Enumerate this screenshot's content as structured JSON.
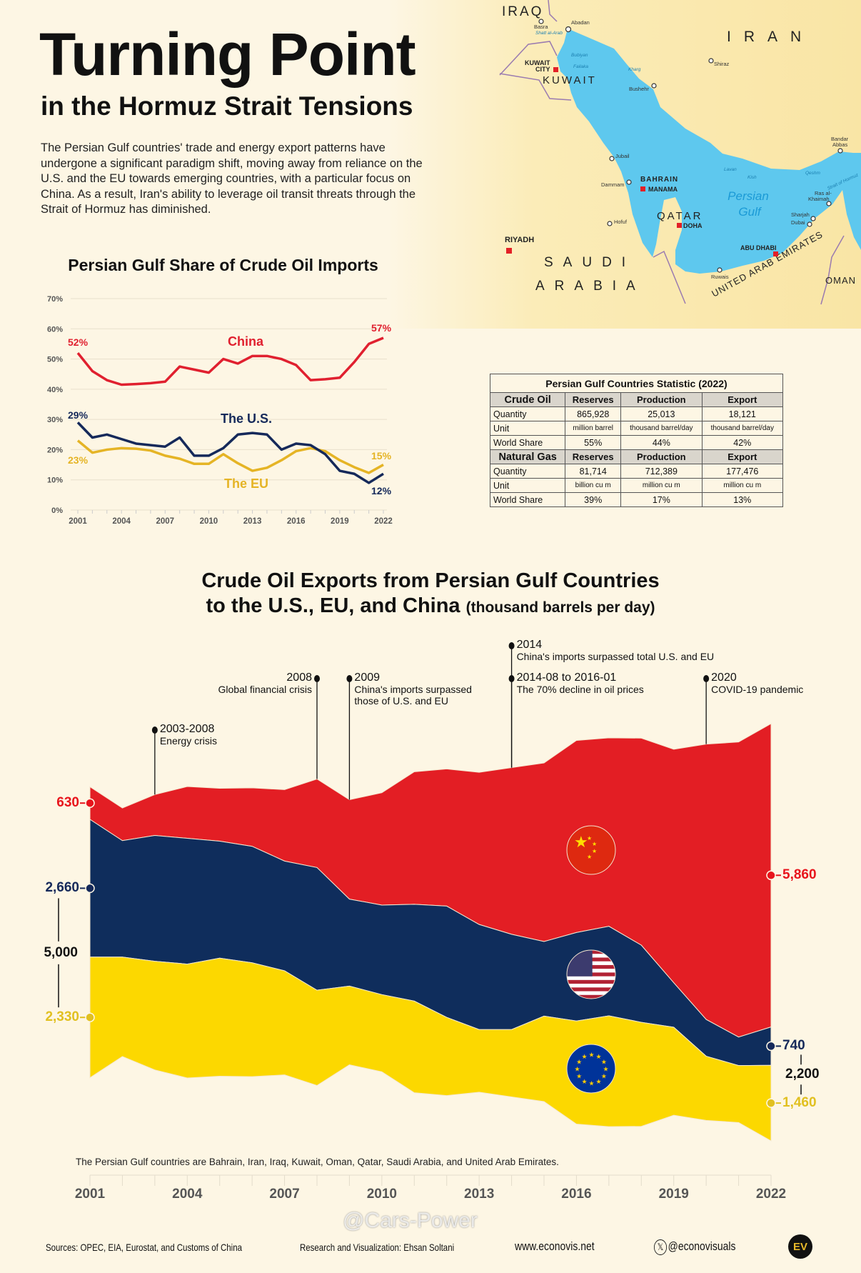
{
  "header": {
    "title": "Turning Point",
    "subtitle": "in the Hormuz Strait Tensions",
    "intro": "The Persian Gulf countries' trade and energy export patterns have undergone a significant paradigm shift, moving away from reliance on the U.S. and the EU towards emerging countries, with a particular focus on China. As a result, Iran's ability to leverage oil transit threats through the Strait of Hormuz has diminished."
  },
  "map": {
    "countries": [
      "IRAQ",
      "IRAN",
      "KUWAIT",
      "QATAR",
      "SAUDI",
      "ARABIA",
      "UNITED ARAB EMIRATES",
      "OMAN",
      "BAHRAIN"
    ],
    "capitals": [
      "KUWAIT",
      "CITY",
      "MANAMA",
      "DOHA",
      "RIYADH",
      "ABU DHABI"
    ],
    "cities": [
      "Basra",
      "Abadan",
      "Shiraz",
      "Bushehr",
      "Jubail",
      "Dammam",
      "Hofuf",
      "Bandar",
      "Abbas",
      "Ras al-",
      "Khaimah",
      "Sharjah",
      "Dubai",
      "Ruwais"
    ],
    "features": [
      "Shatt al-Arab",
      "Bubiyan",
      "Failaka",
      "Kharg",
      "Lavan",
      "Kish",
      "Qeshm",
      "Strait of Hormuz"
    ],
    "sea": [
      "Persian",
      "Gulf"
    ]
  },
  "colors": {
    "china": "#e31e24",
    "us": "#0f2d5c",
    "eu": "#fcd800",
    "china_line": "#e0202f",
    "us_line": "#15295a",
    "eu_line": "#e5b425"
  },
  "table": {
    "title": "Persian Gulf Countries Statistic (2022)",
    "sections": [
      {
        "name": "Crude Oil",
        "cols": [
          "Reserves",
          "Production",
          "Export"
        ],
        "rows": [
          [
            "Quantity",
            "865,928",
            "25,013",
            "18,121"
          ],
          [
            "Unit",
            "million barrel",
            "thousand barrel/day",
            "thousand barrel/day"
          ],
          [
            "World Share",
            "55%",
            "44%",
            "42%"
          ]
        ]
      },
      {
        "name": "Natural Gas",
        "cols": [
          "Reserves",
          "Production",
          "Export"
        ],
        "rows": [
          [
            "Quantity",
            "81,714",
            "712,389",
            "177,476"
          ],
          [
            "Unit",
            "billion cu m",
            "million cu m",
            "million cu m"
          ],
          [
            "World Share",
            "39%",
            "17%",
            "13%"
          ]
        ]
      }
    ]
  },
  "chart_data": [
    {
      "type": "line",
      "title": "Persian Gulf Share of Crude Oil Imports",
      "x": [
        2001,
        2002,
        2003,
        2004,
        2005,
        2006,
        2007,
        2008,
        2009,
        2010,
        2011,
        2012,
        2013,
        2014,
        2015,
        2016,
        2017,
        2018,
        2019,
        2020,
        2021,
        2022
      ],
      "xticks": [
        "2001",
        "2004",
        "2007",
        "2010",
        "2013",
        "2016",
        "2019",
        "2022"
      ],
      "yticks": [
        "0%",
        "10%",
        "20%",
        "30%",
        "40%",
        "50%",
        "60%",
        "70%"
      ],
      "ylim": [
        0,
        70
      ],
      "grid": true,
      "series": [
        {
          "name": "China",
          "key": "china",
          "values": [
            52,
            46,
            43,
            41.5,
            41.7,
            42,
            42.5,
            47.5,
            46.5,
            45.5,
            50,
            48.5,
            51,
            51,
            50,
            48,
            43,
            43.3,
            43.8,
            49,
            55,
            57
          ],
          "start_label": "52%",
          "end_label": "57%"
        },
        {
          "name": "The U.S.",
          "key": "us",
          "values": [
            29,
            24,
            25,
            23.5,
            22,
            21.5,
            21,
            24,
            18,
            18,
            20.5,
            25,
            25.5,
            25,
            20,
            22,
            21.5,
            18.5,
            13,
            12,
            9,
            12
          ],
          "start_label": "29%",
          "end_label": "12%"
        },
        {
          "name": "The EU",
          "key": "eu",
          "values": [
            23,
            19,
            20,
            20.5,
            20.3,
            19.7,
            18,
            17,
            15.3,
            15.3,
            18.5,
            15.5,
            13,
            14,
            16.5,
            19.5,
            20.5,
            19.5,
            16.5,
            14.2,
            12.3,
            15
          ],
          "start_label": "23%",
          "end_label": "15%"
        }
      ]
    },
    {
      "type": "area",
      "title_line1": "Crude Oil Exports from Persian Gulf Countries",
      "title_line2": "to the U.S., EU, and China",
      "unit": "(thousand barrels per day)",
      "x": [
        2001,
        2002,
        2003,
        2004,
        2005,
        2006,
        2007,
        2008,
        2009,
        2010,
        2011,
        2012,
        2013,
        2014,
        2015,
        2016,
        2017,
        2018,
        2019,
        2020,
        2021,
        2022
      ],
      "xticks": [
        "2001",
        "2004",
        "2007",
        "2010",
        "2013",
        "2016",
        "2019",
        "2022"
      ],
      "series": [
        {
          "name": "China",
          "key": "china",
          "values": [
            630,
            630,
            790,
            1000,
            1020,
            1130,
            1380,
            1710,
            1920,
            2170,
            2560,
            2650,
            2940,
            3220,
            3450,
            3710,
            3640,
            4000,
            4510,
            5320,
            5700,
            5860
          ]
        },
        {
          "name": "U.S.",
          "key": "us",
          "values": [
            2660,
            2250,
            2430,
            2430,
            2260,
            2250,
            2120,
            2370,
            1680,
            1730,
            1870,
            2150,
            2030,
            1840,
            1440,
            1710,
            1730,
            1490,
            860,
            710,
            550,
            740
          ]
        },
        {
          "name": "EU",
          "key": "eu",
          "values": [
            2330,
            1920,
            2100,
            2200,
            2280,
            2200,
            2010,
            1840,
            1520,
            1490,
            1770,
            1510,
            1210,
            1300,
            1650,
            1990,
            2140,
            2010,
            1700,
            1240,
            1100,
            1460
          ]
        }
      ],
      "start_labels": {
        "china": "630",
        "us": "2,660",
        "eu": "2,330",
        "us_eu_total": "5,000"
      },
      "end_labels": {
        "china": "5,860",
        "us": "740",
        "eu": "1,460",
        "us_eu_total": "2,200"
      },
      "annotations": [
        {
          "year": 2003,
          "label": "2003-2008",
          "text": "Energy crisis"
        },
        {
          "year": 2008,
          "label": "2008",
          "text": "Global financial crisis"
        },
        {
          "year": 2009,
          "label": "2009",
          "text": "China's imports surpassed those of U.S. and EU"
        },
        {
          "year": 2014,
          "label": "2014",
          "text": "China's imports surpassed total U.S. and EU"
        },
        {
          "year": 2014,
          "label": "2014-08 to 2016-01",
          "text": "The 70% decline in oil prices"
        },
        {
          "year": 2020,
          "label": "2020",
          "text": "COVID-19 pandemic"
        }
      ],
      "note": "The Persian Gulf countries are Bahrain, Iran, Iraq, Kuwait, Oman, Qatar, Saudi Arabia, and United Arab Emirates."
    }
  ],
  "footer": {
    "sources": "Sources: OPEC, EIA, Eurostat, and Customs of China",
    "credit": "Research and Visualization: Ehsan Soltani",
    "website": "www.econovis.net",
    "social": "@econovisuals",
    "logo": "EV",
    "watermark": "@Cars-Power"
  }
}
